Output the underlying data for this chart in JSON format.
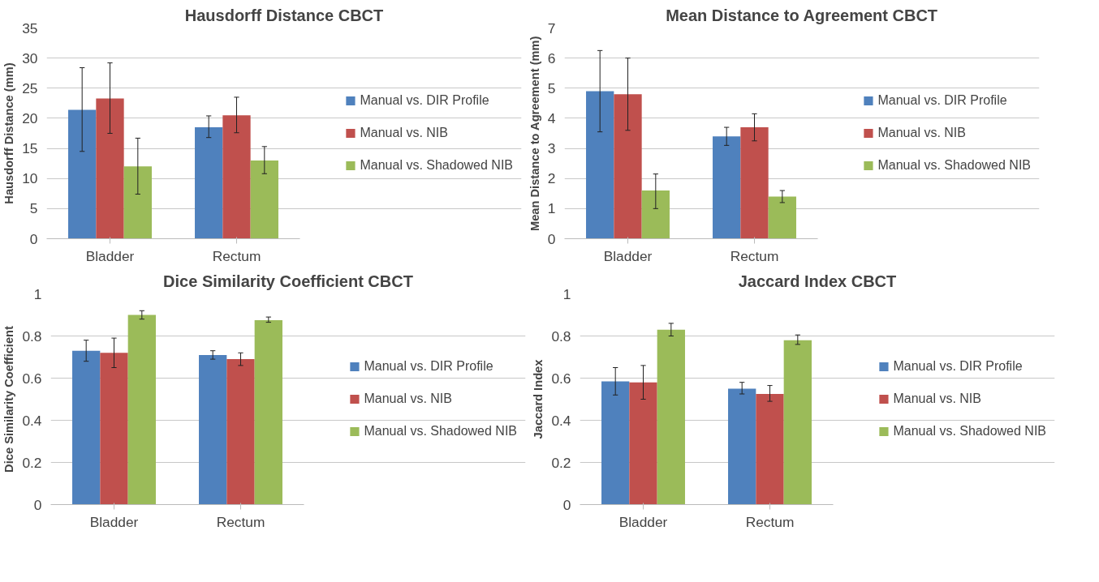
{
  "chart_data": [
    {
      "type": "bar",
      "title": "Hausdorff Distance CBCT",
      "ylabel": "Hausdorff Distance (mm)",
      "categories": [
        "Bladder",
        "Rectum"
      ],
      "ylim": [
        0,
        35
      ],
      "yticks": [
        0,
        5,
        10,
        15,
        20,
        25,
        30,
        35
      ],
      "grid": "y",
      "legend": "right",
      "series": [
        {
          "name": "Manual vs. DIR Profile",
          "color": "#4f81bd",
          "values": [
            21.4,
            18.5
          ],
          "errors": [
            [
              14.5,
              28.4
            ],
            [
              16.8,
              20.4
            ]
          ]
        },
        {
          "name": "Manual vs. NIB",
          "color": "#c0504d",
          "values": [
            23.3,
            20.5
          ],
          "errors": [
            [
              17.5,
              29.2
            ],
            [
              17.6,
              23.5
            ]
          ]
        },
        {
          "name": "Manual vs. Shadowed NIB",
          "color": "#9bbb59",
          "values": [
            12.0,
            13.0
          ],
          "errors": [
            [
              7.4,
              16.7
            ],
            [
              10.8,
              15.3
            ]
          ]
        }
      ]
    },
    {
      "type": "bar",
      "title": "Mean Distance to Agreement CBCT",
      "ylabel": "Mean Distance to Agreement (mm)",
      "categories": [
        "Bladder",
        "Rectum"
      ],
      "ylim": [
        0,
        7
      ],
      "yticks": [
        0,
        1,
        2,
        3,
        4,
        5,
        6,
        7
      ],
      "grid": "y",
      "legend": "right",
      "series": [
        {
          "name": "Manual vs. DIR Profile",
          "color": "#4f81bd",
          "values": [
            4.9,
            3.4
          ],
          "errors": [
            [
              3.55,
              6.25
            ],
            [
              3.1,
              3.7
            ]
          ]
        },
        {
          "name": "Manual vs. NIB",
          "color": "#c0504d",
          "values": [
            4.8,
            3.7
          ],
          "errors": [
            [
              3.6,
              6.0
            ],
            [
              3.25,
              4.15
            ]
          ]
        },
        {
          "name": "Manual vs. Shadowed NIB",
          "color": "#9bbb59",
          "values": [
            1.6,
            1.4
          ],
          "errors": [
            [
              1.0,
              2.15
            ],
            [
              1.2,
              1.6
            ]
          ]
        }
      ]
    },
    {
      "type": "bar",
      "title": "Dice Similarity Coefficient CBCT",
      "ylabel": "Dice Similarity Coefficient",
      "categories": [
        "Bladder",
        "Rectum"
      ],
      "ylim": [
        0,
        1
      ],
      "yticks": [
        0,
        0.2,
        0.4,
        0.6,
        0.8,
        1
      ],
      "grid": "y",
      "legend": "right",
      "series": [
        {
          "name": "Manual vs. DIR Profile",
          "color": "#4f81bd",
          "values": [
            0.73,
            0.71
          ],
          "errors": [
            [
              0.68,
              0.78
            ],
            [
              0.69,
              0.73
            ]
          ]
        },
        {
          "name": "Manual vs. NIB",
          "color": "#c0504d",
          "values": [
            0.72,
            0.69
          ],
          "errors": [
            [
              0.65,
              0.79
            ],
            [
              0.66,
              0.72
            ]
          ]
        },
        {
          "name": "Manual vs. Shadowed NIB",
          "color": "#9bbb59",
          "values": [
            0.9,
            0.875
          ],
          "errors": [
            [
              0.88,
              0.92
            ],
            [
              0.865,
              0.89
            ]
          ]
        }
      ]
    },
    {
      "type": "bar",
      "title": "Jaccard Index CBCT",
      "ylabel": "Jaccard Index",
      "categories": [
        "Bladder",
        "Rectum"
      ],
      "ylim": [
        0,
        1
      ],
      "yticks": [
        0,
        0.2,
        0.4,
        0.6,
        0.8,
        1
      ],
      "grid": "y",
      "legend": "right",
      "series": [
        {
          "name": "Manual vs. DIR Profile",
          "color": "#4f81bd",
          "values": [
            0.585,
            0.55
          ],
          "errors": [
            [
              0.52,
              0.65
            ],
            [
              0.525,
              0.58
            ]
          ]
        },
        {
          "name": "Manual vs. NIB",
          "color": "#c0504d",
          "values": [
            0.58,
            0.525
          ],
          "errors": [
            [
              0.5,
              0.66
            ],
            [
              0.49,
              0.565
            ]
          ]
        },
        {
          "name": "Manual vs. Shadowed NIB",
          "color": "#9bbb59",
          "values": [
            0.83,
            0.78
          ],
          "errors": [
            [
              0.8,
              0.86
            ],
            [
              0.76,
              0.805
            ]
          ]
        }
      ]
    }
  ]
}
